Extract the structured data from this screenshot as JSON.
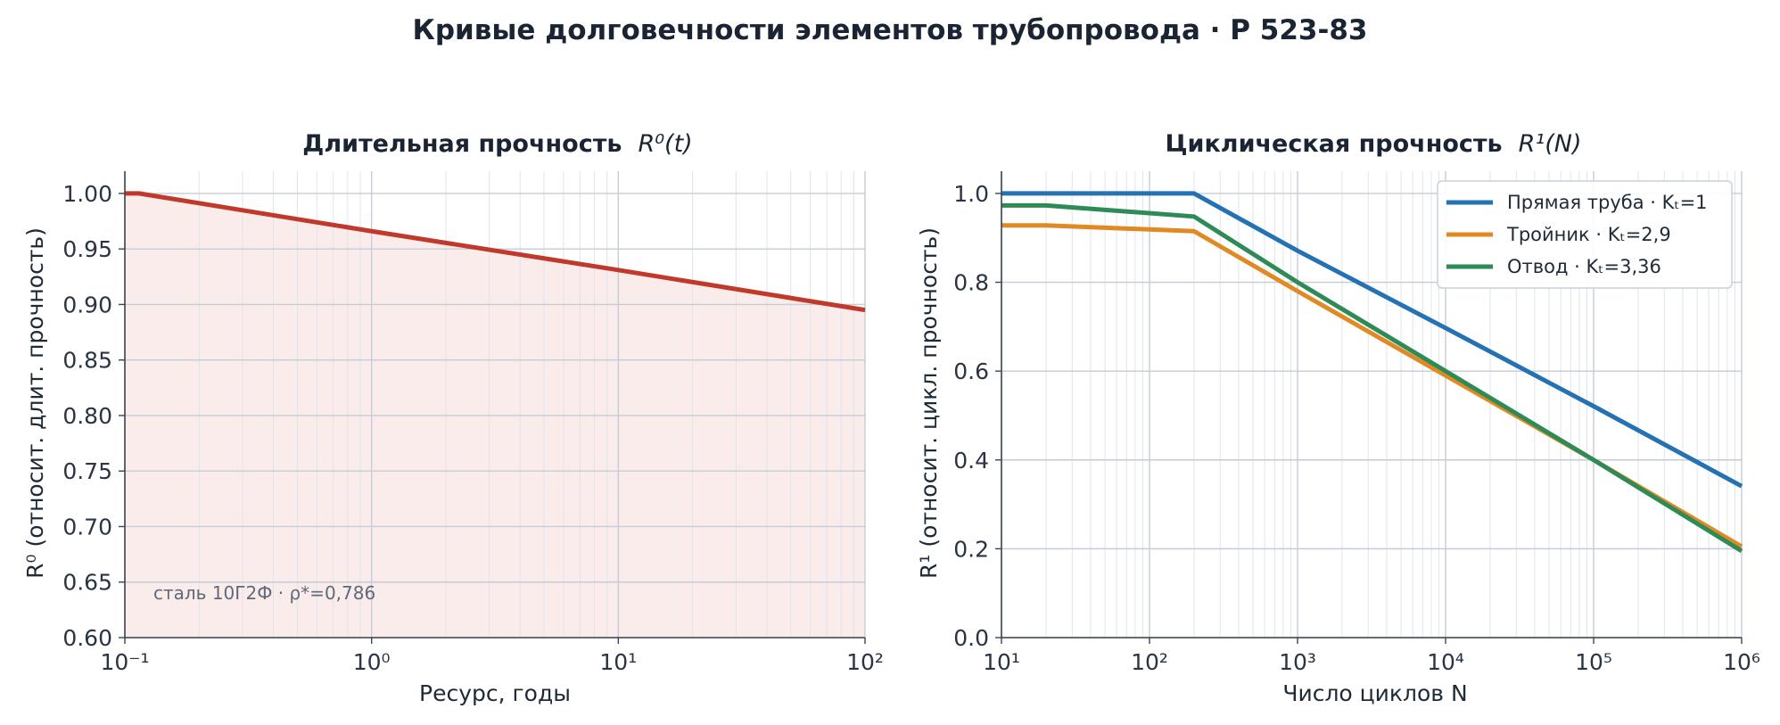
{
  "figure": {
    "title": "Кривые долговечности элементов трубопровода · Р 523-83"
  },
  "chart_data": [
    {
      "type": "line",
      "title": "Длительная прочность",
      "title_math": "R⁰(t)",
      "xlabel": "Ресурс, годы",
      "ylabel": "R⁰  (относит. длит. прочность)",
      "xscale": "log",
      "xlim": [
        0.1,
        100
      ],
      "ylim": [
        0.6,
        1.02
      ],
      "xticks": [
        {
          "value": 0.1,
          "label": "10⁻¹"
        },
        {
          "value": 1,
          "label": "10⁰"
        },
        {
          "value": 10,
          "label": "10¹"
        },
        {
          "value": 100,
          "label": "10²"
        }
      ],
      "yticks": [
        {
          "value": 0.6,
          "label": "0.60"
        },
        {
          "value": 0.65,
          "label": "0.65"
        },
        {
          "value": 0.7,
          "label": "0.70"
        },
        {
          "value": 0.75,
          "label": "0.75"
        },
        {
          "value": 0.8,
          "label": "0.80"
        },
        {
          "value": 0.85,
          "label": "0.85"
        },
        {
          "value": 0.9,
          "label": "0.90"
        },
        {
          "value": 0.95,
          "label": "0.95"
        },
        {
          "value": 1.0,
          "label": "1.00"
        }
      ],
      "grid": true,
      "fill_under": true,
      "series": [
        {
          "color": "#c0392b",
          "fill_color": "#fbecec",
          "points": [
            [
              0.1,
              1.0
            ],
            [
              0.114,
              1.0
            ],
            [
              1,
              0.966
            ],
            [
              10,
              0.931
            ],
            [
              100,
              0.895
            ]
          ]
        }
      ],
      "annotation": "сталь 10Г2Ф · ρ*=0,786"
    },
    {
      "type": "line",
      "title": "Циклическая прочность",
      "title_math": "R¹(N)",
      "xlabel": "Число циклов  N",
      "ylabel": "R¹  (относит. цикл. прочность)",
      "xscale": "log",
      "xlim": [
        10,
        1000000
      ],
      "ylim": [
        0,
        1.05
      ],
      "xticks": [
        {
          "value": 10,
          "label": "10¹"
        },
        {
          "value": 100,
          "label": "10²"
        },
        {
          "value": 1000,
          "label": "10³"
        },
        {
          "value": 10000,
          "label": "10⁴"
        },
        {
          "value": 100000,
          "label": "10⁵"
        },
        {
          "value": 1000000,
          "label": "10⁶"
        }
      ],
      "yticks": [
        {
          "value": 0,
          "label": "0.0"
        },
        {
          "value": 0.2,
          "label": "0.2"
        },
        {
          "value": 0.4,
          "label": "0.4"
        },
        {
          "value": 0.6,
          "label": "0.6"
        },
        {
          "value": 0.8,
          "label": "0.8"
        },
        {
          "value": 1.0,
          "label": "1.0"
        }
      ],
      "grid": true,
      "legend": "top-right",
      "series": [
        {
          "name": "Прямая труба · Kₜ=1",
          "color": "#2471b3",
          "points": [
            [
              10,
              1.0
            ],
            [
              200,
              1.0
            ],
            [
              1000,
              0.871
            ],
            [
              10000,
              0.697
            ],
            [
              100000,
              0.521
            ],
            [
              1000000,
              0.341
            ]
          ]
        },
        {
          "name": "Тройник · Kₜ=2,9",
          "color": "#e08a24",
          "points": [
            [
              10,
              0.928
            ],
            [
              20,
              0.928
            ],
            [
              200,
              0.915
            ],
            [
              1000,
              0.78
            ],
            [
              10000,
              0.59
            ],
            [
              100000,
              0.4
            ],
            [
              1000000,
              0.205
            ]
          ]
        },
        {
          "name": "Отвод · Kₜ=3,36",
          "color": "#2e8b57",
          "points": [
            [
              10,
              0.973
            ],
            [
              20,
              0.973
            ],
            [
              200,
              0.948
            ],
            [
              1000,
              0.8
            ],
            [
              10000,
              0.6
            ],
            [
              100000,
              0.4
            ],
            [
              1000000,
              0.195
            ]
          ]
        }
      ]
    }
  ]
}
